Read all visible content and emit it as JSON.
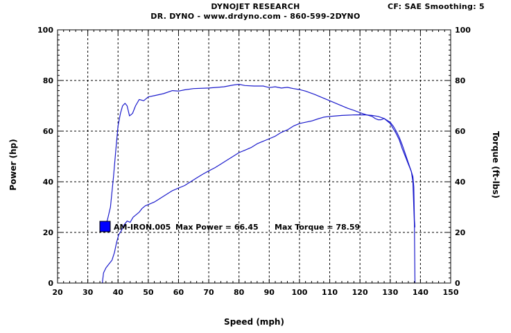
{
  "header": {
    "title": "DYNOJET RESEARCH",
    "subtitle": "DR. DYNO - www.drdyno.com - 860-599-2DYNO",
    "cf_info": "CF: SAE  Smoothing: 5"
  },
  "chart_data": {
    "type": "line",
    "xlabel": "Speed (mph)",
    "ylabel_left": "Power (hp)",
    "ylabel_right": "Torque (ft-lbs)",
    "xlim": [
      20,
      150
    ],
    "ylim": [
      0,
      100
    ],
    "x_ticks": [
      20,
      30,
      40,
      50,
      60,
      70,
      80,
      90,
      100,
      110,
      120,
      130,
      140,
      150
    ],
    "y_ticks": [
      0,
      20,
      40,
      60,
      80,
      100
    ],
    "grid": true,
    "colors": {
      "series": "#1a1acc",
      "legend_marker": "#0000ff",
      "grid": "#000000"
    },
    "legend": {
      "run_name": "AM-IRON.005",
      "max_power_text": "Max Power = 66.45",
      "max_torque_text": "Max Torque = 78.59"
    },
    "series": [
      {
        "id": "torque",
        "points": [
          [
            34.8,
            21
          ],
          [
            35.5,
            22
          ],
          [
            36.5,
            25
          ],
          [
            37.5,
            30
          ],
          [
            38.5,
            42
          ],
          [
            39.3,
            53
          ],
          [
            40,
            62
          ],
          [
            40.8,
            67
          ],
          [
            41.5,
            70
          ],
          [
            42.3,
            71
          ],
          [
            43,
            70
          ],
          [
            43.8,
            66
          ],
          [
            44.8,
            67
          ],
          [
            45.8,
            70
          ],
          [
            47,
            72.5
          ],
          [
            48.5,
            72
          ],
          [
            50,
            73.5
          ],
          [
            52,
            74
          ],
          [
            55,
            74.8
          ],
          [
            58,
            76
          ],
          [
            60,
            75.8
          ],
          [
            62,
            76.3
          ],
          [
            65,
            76.8
          ],
          [
            70,
            77
          ],
          [
            75,
            77.5
          ],
          [
            78,
            78.2
          ],
          [
            80,
            78.5
          ],
          [
            82,
            78
          ],
          [
            85,
            77.8
          ],
          [
            88,
            77.8
          ],
          [
            90,
            77.2
          ],
          [
            92,
            77.5
          ],
          [
            94,
            77
          ],
          [
            96,
            77.3
          ],
          [
            98,
            76.8
          ],
          [
            100,
            76.4
          ],
          [
            102,
            75.8
          ],
          [
            105,
            74.5
          ],
          [
            108,
            73
          ],
          [
            110,
            72
          ],
          [
            113,
            70.5
          ],
          [
            116,
            69
          ],
          [
            118,
            68.2
          ],
          [
            120,
            67.3
          ],
          [
            122,
            66.5
          ],
          [
            124,
            65.8
          ],
          [
            125,
            65
          ],
          [
            126,
            64.5
          ],
          [
            127,
            64.5
          ],
          [
            128,
            65
          ],
          [
            129,
            64
          ],
          [
            130,
            63
          ],
          [
            131,
            61
          ],
          [
            132,
            59
          ],
          [
            133,
            56.5
          ],
          [
            134,
            53
          ],
          [
            135,
            50
          ],
          [
            136,
            47
          ],
          [
            137,
            44
          ],
          [
            137.5,
            40
          ],
          [
            137.8,
            30
          ],
          [
            138,
            23
          ],
          [
            138.2,
            0
          ]
        ]
      },
      {
        "id": "power",
        "points": [
          [
            34.8,
            0
          ],
          [
            35.2,
            4
          ],
          [
            36,
            6
          ],
          [
            37,
            7.5
          ],
          [
            38,
            9
          ],
          [
            38.8,
            12
          ],
          [
            39.5,
            16
          ],
          [
            40.2,
            19
          ],
          [
            41,
            20.5
          ],
          [
            42,
            23
          ],
          [
            43,
            24.5
          ],
          [
            44,
            24
          ],
          [
            45,
            26
          ],
          [
            46,
            27
          ],
          [
            47,
            28
          ],
          [
            48,
            29.5
          ],
          [
            49,
            30.5
          ],
          [
            50,
            31
          ],
          [
            52,
            32
          ],
          [
            54,
            33.5
          ],
          [
            56,
            35
          ],
          [
            58,
            36.5
          ],
          [
            60,
            37.5
          ],
          [
            62,
            38.5
          ],
          [
            64,
            40
          ],
          [
            66,
            41.5
          ],
          [
            68,
            43
          ],
          [
            70,
            44.3
          ],
          [
            72,
            45.5
          ],
          [
            74,
            47
          ],
          [
            76,
            48.5
          ],
          [
            78,
            50
          ],
          [
            80,
            51.5
          ],
          [
            82,
            52.5
          ],
          [
            84,
            53.5
          ],
          [
            86,
            55
          ],
          [
            88,
            56
          ],
          [
            90,
            57
          ],
          [
            92,
            58
          ],
          [
            94,
            59.5
          ],
          [
            96,
            60.5
          ],
          [
            98,
            62
          ],
          [
            100,
            63
          ],
          [
            102,
            63.5
          ],
          [
            104,
            64
          ],
          [
            106,
            64.8
          ],
          [
            108,
            65.5
          ],
          [
            110,
            65.8
          ],
          [
            112,
            66
          ],
          [
            114,
            66.2
          ],
          [
            116,
            66.3
          ],
          [
            118,
            66.4
          ],
          [
            120,
            66.45
          ],
          [
            122,
            66.4
          ],
          [
            124,
            66.2
          ],
          [
            126,
            65.8
          ],
          [
            128,
            65
          ],
          [
            130,
            63.5
          ],
          [
            131,
            62
          ],
          [
            132,
            60
          ],
          [
            133,
            57.5
          ],
          [
            134,
            54.5
          ],
          [
            135,
            51
          ],
          [
            136,
            47.5
          ],
          [
            137,
            44
          ],
          [
            137.5,
            42
          ],
          [
            137.8,
            38
          ],
          [
            138,
            25
          ],
          [
            138.2,
            22
          ]
        ]
      }
    ]
  }
}
